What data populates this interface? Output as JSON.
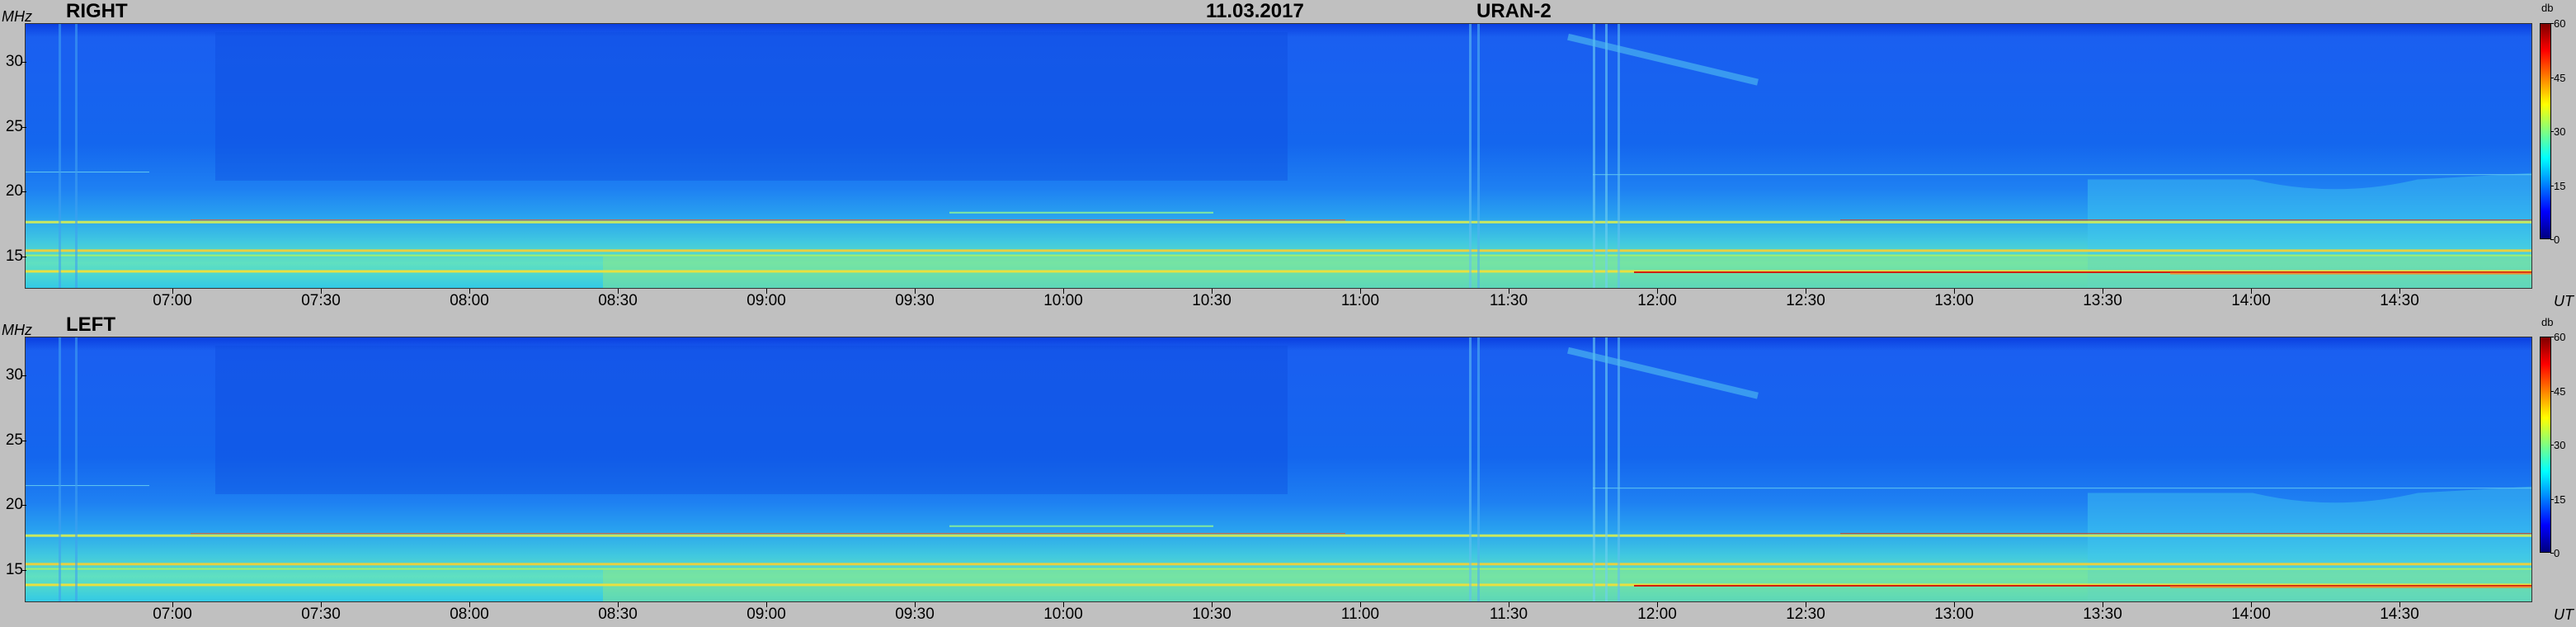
{
  "header": {
    "date": "11.03.2017",
    "instrument": "URAN-2"
  },
  "colorbar": {
    "unit": "db",
    "ticks": [
      "60",
      "45",
      "30",
      "15",
      "0"
    ],
    "colors": [
      "#00007f",
      "#0000ff",
      "#0080ff",
      "#00ffff",
      "#80ff80",
      "#ffff00",
      "#ff8000",
      "#ff0000",
      "#7f0000"
    ]
  },
  "chart_data": [
    {
      "type": "heatmap",
      "panel": "RIGHT",
      "ylabel": "MHz",
      "xlabel": "UT",
      "y_ticks": [
        "30",
        "25",
        "20",
        "15"
      ],
      "x_ticks": [
        "07:00",
        "07:30",
        "08:00",
        "08:30",
        "09:00",
        "09:30",
        "10:00",
        "10:30",
        "11:00",
        "11:30",
        "12:00",
        "12:30",
        "13:00",
        "13:30",
        "14:00",
        "14:30"
      ],
      "ylim": [
        12.5,
        33
      ],
      "xlim": [
        "06:45",
        "14:57"
      ],
      "zlim": [
        0,
        60
      ]
    },
    {
      "type": "heatmap",
      "panel": "LEFT",
      "ylabel": "MHz",
      "xlabel": "UT",
      "y_ticks": [
        "30",
        "25",
        "20",
        "15"
      ],
      "x_ticks": [
        "07:00",
        "07:30",
        "08:00",
        "08:30",
        "09:00",
        "09:30",
        "10:00",
        "10:30",
        "11:00",
        "11:30",
        "12:00",
        "12:30",
        "13:00",
        "13:30",
        "14:00",
        "14:30"
      ],
      "ylim": [
        12.5,
        33
      ],
      "xlim": [
        "06:45",
        "14:57"
      ],
      "zlim": [
        0,
        60
      ]
    }
  ]
}
